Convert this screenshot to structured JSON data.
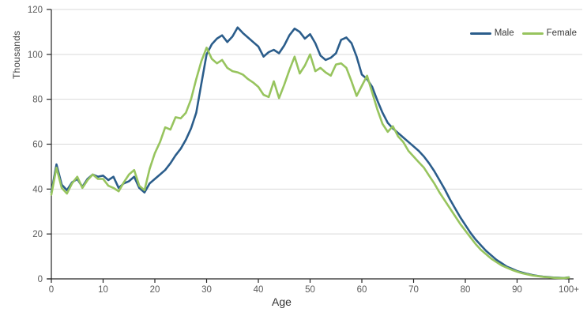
{
  "chart_data": {
    "type": "line",
    "title": "",
    "xlabel": "Age",
    "ylabel": "Thousands",
    "xlim": [
      0,
      100
    ],
    "ylim": [
      0,
      120
    ],
    "x_start": 0,
    "x_step": 1,
    "grid": "horizontal",
    "legend_position": "top-right",
    "x_ticks": [
      "0",
      "10",
      "20",
      "30",
      "40",
      "50",
      "60",
      "70",
      "80",
      "90",
      "100+"
    ],
    "y_ticks": [
      0,
      20,
      40,
      60,
      80,
      100,
      120
    ],
    "series": [
      {
        "name": "Male",
        "color": "#2b5d8b",
        "values": [
          38.5,
          51,
          42,
          39.5,
          43,
          44.5,
          41,
          44.5,
          46.5,
          45.5,
          46,
          44,
          45.5,
          40.5,
          42.5,
          43.5,
          45.5,
          40.5,
          38.5,
          42.5,
          44.5,
          46.5,
          48.5,
          51.5,
          55,
          58,
          62,
          67,
          74,
          87,
          100,
          104.5,
          107,
          108.5,
          105.5,
          108,
          112,
          109.5,
          107.5,
          105.5,
          103.5,
          99,
          101,
          102,
          100.5,
          104,
          108.5,
          111.5,
          110,
          107,
          109,
          105,
          99.5,
          97.5,
          98.5,
          100.5,
          106.5,
          107.5,
          105,
          99,
          91,
          89,
          85.5,
          79.5,
          74,
          69.5,
          67,
          65,
          63,
          61,
          59,
          57,
          54.5,
          51.5,
          48,
          44,
          40,
          35.5,
          31.5,
          27.5,
          24,
          20.5,
          17.5,
          15,
          12.5,
          10.5,
          8.5,
          7,
          5.5,
          4.5,
          3.5,
          2.8,
          2.2,
          1.7,
          1.3,
          1,
          0.8,
          0.6,
          0.5,
          0.4,
          0.7
        ]
      },
      {
        "name": "Female",
        "color": "#97c45e",
        "values": [
          37.5,
          49.5,
          40.5,
          38,
          42.5,
          45.5,
          40.5,
          44,
          46.5,
          44.5,
          44.5,
          41.5,
          40.5,
          39,
          43,
          46.5,
          48.5,
          41.5,
          39.5,
          49,
          56,
          61,
          67.5,
          66.5,
          72,
          71.5,
          74,
          80,
          89,
          97,
          103,
          98,
          96,
          97.5,
          94,
          92.5,
          92,
          91,
          89,
          87.5,
          85.5,
          82,
          81,
          88,
          80.5,
          86.5,
          93,
          99,
          91.5,
          95,
          100,
          92.5,
          94,
          92,
          90.5,
          95.5,
          96,
          94,
          88,
          81.5,
          86,
          90.5,
          83,
          75.5,
          69,
          65.5,
          68,
          63.5,
          61,
          57,
          54.5,
          52,
          49.5,
          46,
          42.5,
          38.5,
          35,
          31.5,
          28,
          24.5,
          21.5,
          18.5,
          15.5,
          13,
          11,
          9,
          7.5,
          6,
          5,
          4,
          3.2,
          2.5,
          2,
          1.5,
          1.2,
          0.9,
          0.7,
          0.5,
          0.4,
          0.3,
          0.6
        ]
      }
    ]
  },
  "labels": {
    "y_axis_title": "Thousands",
    "x_axis_title": "Age",
    "legend_male": "Male",
    "legend_female": "Female"
  },
  "colors": {
    "male_line": "#2b5d8b",
    "female_line": "#97c45e",
    "gridline": "#d9d9d9",
    "axis": "#262626",
    "tick_text": "#595959"
  }
}
